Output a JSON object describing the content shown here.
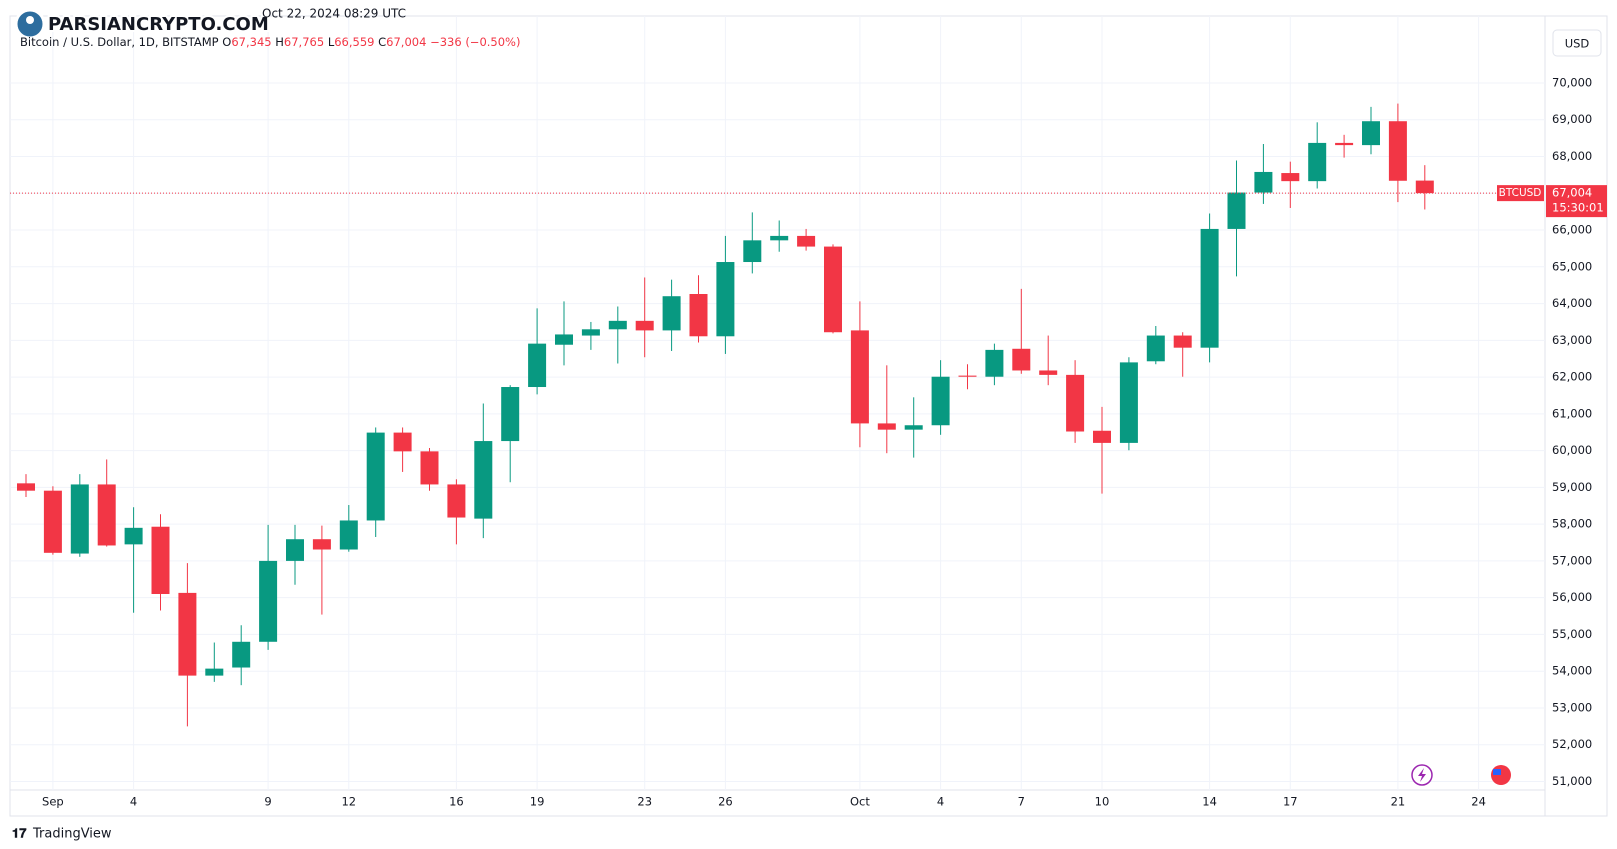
{
  "chart_data": {
    "type": "candlestick",
    "watermark": "PARSIANCRYPTO.COM",
    "timestamp": "Oct 22, 2024 08:29 UTC",
    "legend": {
      "title": "Bitcoin / U.S. Dollar, 1D, BITSTAMP",
      "o_label": "O",
      "o": "67,345",
      "h_label": "H",
      "h": "67,765",
      "l_label": "L",
      "l": "66,559",
      "c_label": "C",
      "c": "67,004",
      "change": "−336 (−0.50%)"
    },
    "currency": "USD",
    "price_label": {
      "symbol": "BTCUSD",
      "value": "67,004",
      "countdown": "15:30:01"
    },
    "brand": "TradingView",
    "up_color": "#089981",
    "down_color": "#f23645",
    "grid": true,
    "categories": [
      null,
      "Sep",
      null,
      null,
      "4",
      null,
      null,
      null,
      null,
      "9",
      null,
      null,
      "12",
      null,
      null,
      null,
      "16",
      null,
      null,
      "19",
      null,
      null,
      null,
      "23",
      null,
      null,
      "26",
      null,
      null,
      null,
      null,
      "Oct",
      null,
      null,
      "4",
      null,
      null,
      "7",
      null,
      null,
      "10",
      null,
      null,
      null,
      "14",
      null,
      null,
      "17",
      null,
      null,
      null,
      "21",
      null,
      null,
      "24"
    ],
    "open": [
      59110,
      58910,
      57200,
      59080,
      57450,
      57930,
      56130,
      53880,
      54100,
      54800,
      57000,
      57590,
      57310,
      58100,
      60490,
      59980,
      59080,
      58150,
      60260,
      61730,
      62880,
      63130,
      63300,
      63530,
      63270,
      64260,
      63110,
      65130,
      65720,
      65840,
      65550,
      63270,
      60740,
      60570,
      60690,
      62040,
      62010,
      62770,
      62180,
      62060,
      60540,
      60210,
      62430,
      63130,
      62800,
      66030,
      67020,
      67550,
      67330,
      68370,
      68310,
      68960,
      67345,
      null,
      null
    ],
    "high": [
      59360,
      59030,
      59360,
      59760,
      58460,
      58270,
      56940,
      54780,
      55250,
      57980,
      57980,
      57960,
      58520,
      60630,
      60630,
      60070,
      59220,
      61280,
      61780,
      63870,
      64060,
      63500,
      63920,
      64710,
      64650,
      64770,
      65840,
      66480,
      66260,
      66030,
      65610,
      64060,
      62320,
      61450,
      62460,
      62350,
      62910,
      64400,
      63130,
      62460,
      61190,
      62540,
      63390,
      63220,
      66450,
      67890,
      68340,
      67860,
      68930,
      68590,
      69350,
      69440,
      67765,
      null,
      null
    ],
    "low": [
      58740,
      57170,
      57110,
      57390,
      55590,
      55650,
      52500,
      53710,
      53620,
      54580,
      56350,
      55540,
      57250,
      57650,
      59420,
      58910,
      57450,
      57620,
      59140,
      61530,
      62320,
      62740,
      62370,
      62540,
      62710,
      62940,
      62630,
      64820,
      65410,
      65440,
      63190,
      60090,
      59930,
      59810,
      60430,
      61670,
      61780,
      62090,
      61780,
      60210,
      58830,
      60010,
      62350,
      62010,
      62400,
      64740,
      66710,
      66600,
      67130,
      67970,
      68060,
      66760,
      66559,
      null,
      null
    ],
    "close": [
      58910,
      57220,
      59080,
      57420,
      57900,
      56100,
      53880,
      54070,
      54800,
      57000,
      57590,
      57310,
      58100,
      60490,
      59980,
      59080,
      58180,
      60260,
      61730,
      62910,
      63160,
      63300,
      63530,
      63270,
      64200,
      63110,
      65130,
      65720,
      65840,
      65550,
      63220,
      60740,
      60570,
      60690,
      62010,
      62010,
      62740,
      62180,
      62060,
      60520,
      60210,
      62400,
      63130,
      62800,
      66030,
      67020,
      67580,
      67330,
      68370,
      68310,
      68960,
      67340,
      67004,
      null,
      null
    ],
    "ylim": [
      50850,
      71550
    ],
    "yticks": [
      {
        "value": 51000,
        "label": "51,000"
      },
      {
        "value": 52000,
        "label": "52,000"
      },
      {
        "value": 53000,
        "label": "53,000"
      },
      {
        "value": 54000,
        "label": "54,000"
      },
      {
        "value": 55000,
        "label": "55,000"
      },
      {
        "value": 56000,
        "label": "56,000"
      },
      {
        "value": 57000,
        "label": "57,000"
      },
      {
        "value": 58000,
        "label": "58,000"
      },
      {
        "value": 59000,
        "label": "59,000"
      },
      {
        "value": 60000,
        "label": "60,000"
      },
      {
        "value": 61000,
        "label": "61,000"
      },
      {
        "value": 62000,
        "label": "62,000"
      },
      {
        "value": 63000,
        "label": "63,000"
      },
      {
        "value": 64000,
        "label": "64,000"
      },
      {
        "value": 65000,
        "label": "65,000"
      },
      {
        "value": 66000,
        "label": "66,000"
      },
      {
        "value": 67000,
        "label": "67,000"
      },
      {
        "value": 68000,
        "label": "68,000"
      },
      {
        "value": 69000,
        "label": "69,000"
      },
      {
        "value": 70000,
        "label": "70,000"
      }
    ]
  }
}
